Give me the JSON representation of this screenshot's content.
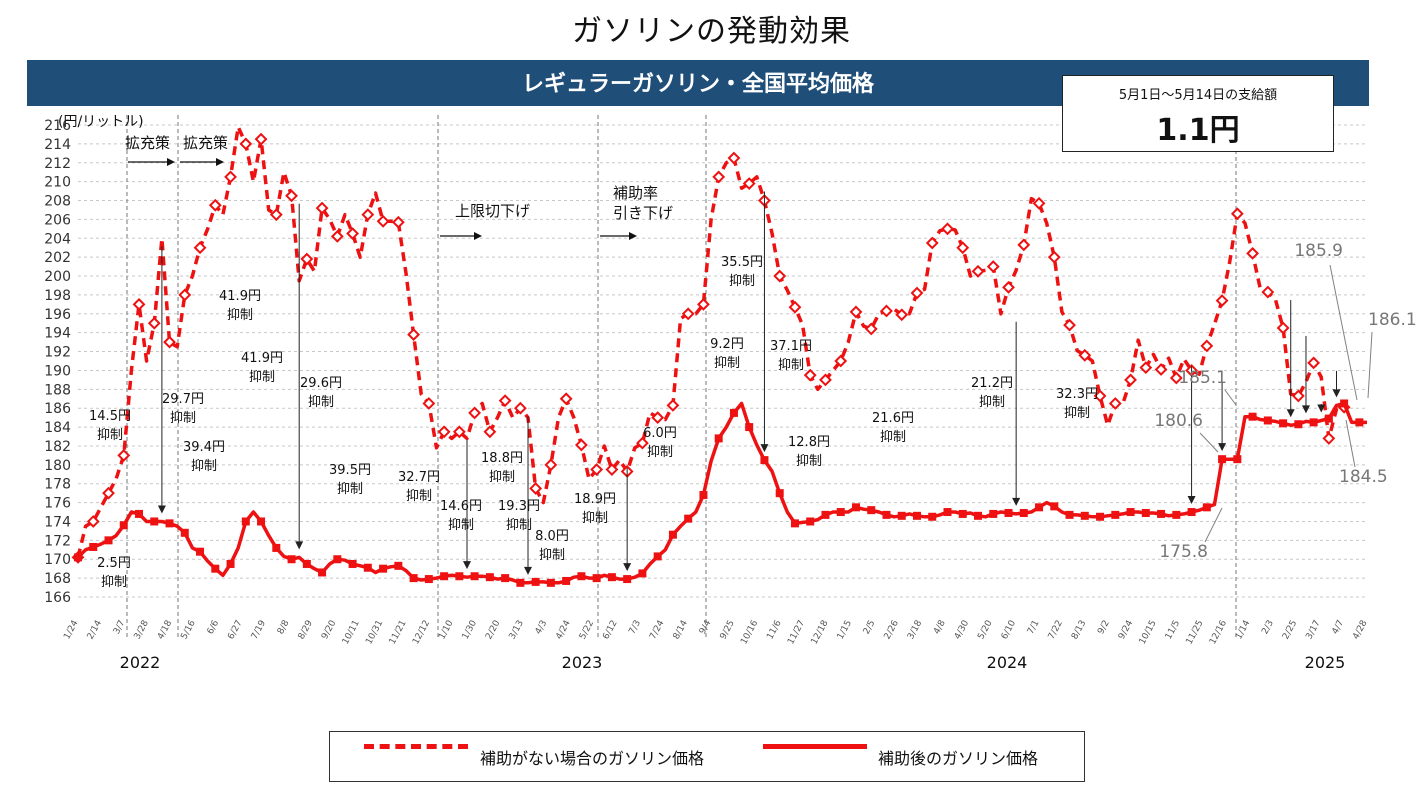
{
  "title": "ガソリンの発動効果",
  "subtitle": "レギュラーガソリン・全国平均価格",
  "payment_box": {
    "label": "5月1日～5月14日の支給額",
    "amount": "1.1円"
  },
  "legend": {
    "without_subsidy": "補助がない場合のガソリン価格",
    "with_subsidy": "補助後のガソリン価格"
  },
  "colors": {
    "series": "#ee1111",
    "band": "#1f4e79",
    "grid": "#c8c8c8",
    "callout": "#808080"
  },
  "chart_data": {
    "type": "line",
    "ylabel": "(円/リットル)",
    "ylim": [
      166,
      216
    ],
    "yticks": [
      166,
      168,
      170,
      172,
      174,
      176,
      178,
      180,
      182,
      184,
      186,
      188,
      190,
      192,
      194,
      196,
      198,
      200,
      202,
      204,
      206,
      208,
      210,
      212,
      214,
      216
    ],
    "x_tick_labels": [
      "1/24",
      "2/14",
      "3/7",
      "3/28",
      "4/18",
      "5/16",
      "6/6",
      "6/27",
      "7/19",
      "8/8",
      "8/29",
      "9/20",
      "10/11",
      "10/31",
      "11/21",
      "12/12",
      "1/10",
      "1/30",
      "2/20",
      "3/13",
      "4/3",
      "4/24",
      "5/22",
      "6/12",
      "7/3",
      "7/24",
      "8/14",
      "9/4",
      "9/25",
      "10/16",
      "11/6",
      "11/27",
      "12/18",
      "1/15",
      "2/5",
      "2/26",
      "3/18",
      "4/8",
      "4/30",
      "5/20",
      "6/10",
      "7/1",
      "7/22",
      "8/13",
      "9/2",
      "9/24",
      "10/15",
      "11/5",
      "11/25",
      "12/16",
      "1/14",
      "2/3",
      "2/25",
      "3/17",
      "4/7",
      "4/28"
    ],
    "years": [
      "2022",
      "2023",
      "2024",
      "2025"
    ],
    "phase_labels": [
      {
        "text": "拡充策"
      },
      {
        "text": "拡充策"
      },
      {
        "text": "上限切下げ"
      },
      {
        "text": "補助率"
      },
      {
        "text": "引き下げ"
      }
    ],
    "series": [
      {
        "name": "補助がない場合のガソリン価格",
        "style": "dashed",
        "values": [
          170.2,
          173.5,
          174,
          175.5,
          177,
          178.5,
          181,
          190,
          197,
          191,
          195,
          204,
          193,
          192.5,
          198,
          200,
          203,
          205,
          207.5,
          206.5,
          210.5,
          215.8,
          214,
          210,
          214.5,
          207,
          206.5,
          211,
          208.5,
          199.5,
          201.8,
          200.5,
          207.2,
          206,
          204.2,
          206.5,
          204.5,
          202,
          206.5,
          208.8,
          205.8,
          205.8,
          205.7,
          200.3,
          193.8,
          187.5,
          186.5,
          181.8,
          183.5,
          182.8,
          183.5,
          182.8,
          185.5,
          186.5,
          183.5,
          185,
          186.8,
          185,
          186,
          185,
          177.5,
          176,
          180,
          185,
          187,
          185,
          182.1,
          178.5,
          179.5,
          182,
          179.5,
          180.5,
          179.3,
          181.8,
          182.3,
          185.5,
          185,
          184.8,
          186.3,
          195.5,
          196,
          196,
          197,
          206,
          210.5,
          212,
          212.5,
          209.3,
          209.8,
          210.5,
          208,
          204.5,
          200,
          198.5,
          196.7,
          194.8,
          189.5,
          188,
          189,
          190,
          191,
          193,
          196.2,
          194.7,
          194.4,
          196,
          196.3,
          196.5,
          195.9,
          196,
          198.2,
          198.6,
          203.5,
          204.8,
          205,
          204.9,
          203,
          200,
          200.5,
          200.6,
          201,
          196,
          198.8,
          200.6,
          203.3,
          208.2,
          207.7,
          205.6,
          202,
          196.2,
          194.8,
          192.1,
          191.6,
          191,
          187.3,
          184.2,
          186.5,
          186.5,
          189,
          193.2,
          190.3,
          191.7,
          190.1,
          191.3,
          189.2,
          191.2,
          190,
          189.6,
          192.6,
          194.9,
          197.4,
          201.5,
          206.6,
          205.6,
          202.4,
          198.7,
          198.3,
          197.5,
          194.5,
          187.5,
          187.3,
          188.8,
          190.8,
          189.3,
          182.8,
          185.9,
          186.1
        ]
      },
      {
        "name": "補助後のガソリン価格",
        "style": "solid",
        "values": [
          170.2,
          171,
          171.3,
          171.6,
          172,
          172.5,
          173.6,
          175,
          174.8,
          174,
          174,
          174,
          173.8,
          173.5,
          172.8,
          171.2,
          170.8,
          169.8,
          169,
          168.3,
          169.5,
          171.2,
          174,
          175,
          174,
          172.5,
          171.2,
          170.3,
          170,
          170.2,
          169.5,
          169,
          168.6,
          169.5,
          170,
          169.9,
          169.5,
          169.3,
          169.1,
          168.6,
          169,
          169.2,
          169.3,
          168.8,
          168,
          167.8,
          167.9,
          168,
          168.2,
          168.3,
          168.2,
          168.1,
          168.2,
          168.2,
          168.1,
          167.9,
          168,
          167.8,
          167.5,
          167.5,
          167.6,
          167.6,
          167.5,
          167.5,
          167.7,
          168.1,
          168.2,
          168,
          168,
          168.3,
          168.1,
          167.9,
          167.9,
          168.1,
          168.5,
          169.5,
          170.3,
          171,
          172.6,
          173.5,
          174.3,
          175,
          176.8,
          180.4,
          182.8,
          184,
          185.5,
          186.5,
          184,
          182.1,
          180.5,
          179.3,
          177,
          175,
          173.8,
          173.9,
          174,
          174.2,
          174.7,
          175,
          175,
          175,
          175.5,
          175.3,
          175.2,
          175,
          174.7,
          174.5,
          174.6,
          174.8,
          174.6,
          174.5,
          174.5,
          174.7,
          175,
          175,
          174.8,
          174.9,
          174.6,
          174.5,
          174.8,
          175,
          174.9,
          174.8,
          174.9,
          175,
          175.5,
          176,
          175.6,
          175,
          174.7,
          174.7,
          174.6,
          174.5,
          174.5,
          174.6,
          174.7,
          174.8,
          175,
          175,
          174.9,
          174.9,
          174.8,
          174.6,
          174.7,
          174.8,
          175,
          175.2,
          175.5,
          175.8,
          180.6,
          180.6,
          180.6,
          185.1,
          185.1,
          184.8,
          184.7,
          184.6,
          184.4,
          184.2,
          184.3,
          184.6,
          184.5,
          184.7,
          184.9,
          186.3,
          186.5,
          184.5,
          184.5,
          184.5
        ]
      }
    ],
    "annotations": [
      {
        "text1": "14.5円",
        "text2": "抑制"
      },
      {
        "text1": "2.5円",
        "text2": "抑制"
      },
      {
        "text1": "29.7円",
        "text2": "抑制"
      },
      {
        "text1": "39.4円",
        "text2": "抑制"
      },
      {
        "text1": "41.9円",
        "text2": "抑制"
      },
      {
        "text1": "41.9円",
        "text2": "抑制"
      },
      {
        "text1": "29.6円",
        "text2": "抑制"
      },
      {
        "text1": "39.5円",
        "text2": "抑制"
      },
      {
        "text1": "32.7円",
        "text2": "抑制"
      },
      {
        "text1": "14.6円",
        "text2": "抑制"
      },
      {
        "text1": "18.8円",
        "text2": "抑制"
      },
      {
        "text1": "19.3円",
        "text2": "抑制"
      },
      {
        "text1": "8.0円",
        "text2": "抑制"
      },
      {
        "text1": "18.9円",
        "text2": "抑制"
      },
      {
        "text1": "6.0円",
        "text2": "抑制"
      },
      {
        "text1": "9.2円",
        "text2": "抑制"
      },
      {
        "text1": "35.5円",
        "text2": "抑制"
      },
      {
        "text1": "37.1円",
        "text2": "抑制"
      },
      {
        "text1": "12.8円",
        "text2": "抑制"
      },
      {
        "text1": "21.6円",
        "text2": "抑制"
      },
      {
        "text1": "21.2円",
        "text2": "抑制"
      },
      {
        "text1": "32.3円",
        "text2": "抑制"
      }
    ],
    "callouts": [
      "185.9",
      "186.1",
      "185.1",
      "180.6",
      "175.8",
      "184.5"
    ]
  }
}
